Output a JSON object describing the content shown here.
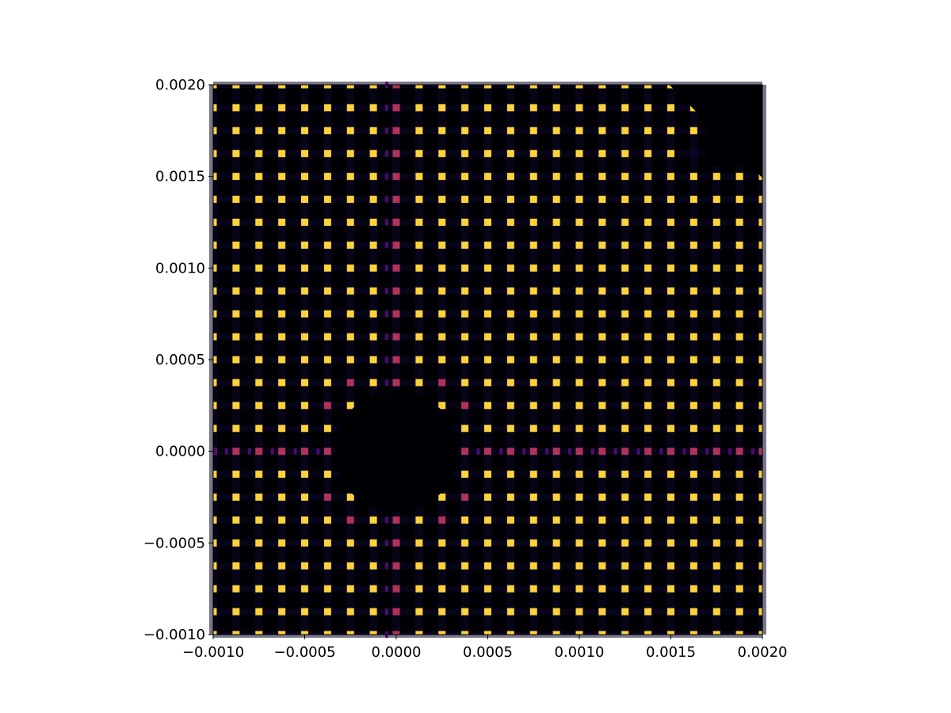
{
  "chart_data": {
    "type": "heatmap",
    "colormap": "inferno",
    "xlim": [
      -0.001,
      0.002
    ],
    "ylim": [
      -0.001,
      0.002
    ],
    "x_ticks": [
      -0.001,
      -0.0005,
      0.0,
      0.0005,
      0.001,
      0.0015,
      0.002
    ],
    "y_ticks": [
      -0.001,
      -0.0005,
      0.0,
      0.0005,
      0.001,
      0.0015,
      0.002
    ],
    "x_tick_labels": [
      "−0.0010",
      "−0.0005",
      "0.0000",
      "0.0005",
      "0.0010",
      "0.0015",
      "0.0020"
    ],
    "y_tick_labels": [
      "−0.0010",
      "−0.0005",
      "0.0000",
      "0.0005",
      "0.0010",
      "0.0015",
      "0.0020"
    ],
    "grid_columns": 24,
    "grid_rows": 24,
    "dark_regions": [
      {
        "shape": "circle",
        "center": [
          0.0,
          0.0
        ],
        "radius": 0.00036
      },
      {
        "shape": "corner-top-right",
        "x_from": 0.0016,
        "y_from": 0.0016
      }
    ],
    "colors": {
      "background": "#000004",
      "faint_band": "#0d0829",
      "hot": "#fcd33b",
      "magenta": "#b1325a",
      "purple": "#4a0c6b"
    },
    "title": "",
    "xlabel": "",
    "ylabel": ""
  }
}
